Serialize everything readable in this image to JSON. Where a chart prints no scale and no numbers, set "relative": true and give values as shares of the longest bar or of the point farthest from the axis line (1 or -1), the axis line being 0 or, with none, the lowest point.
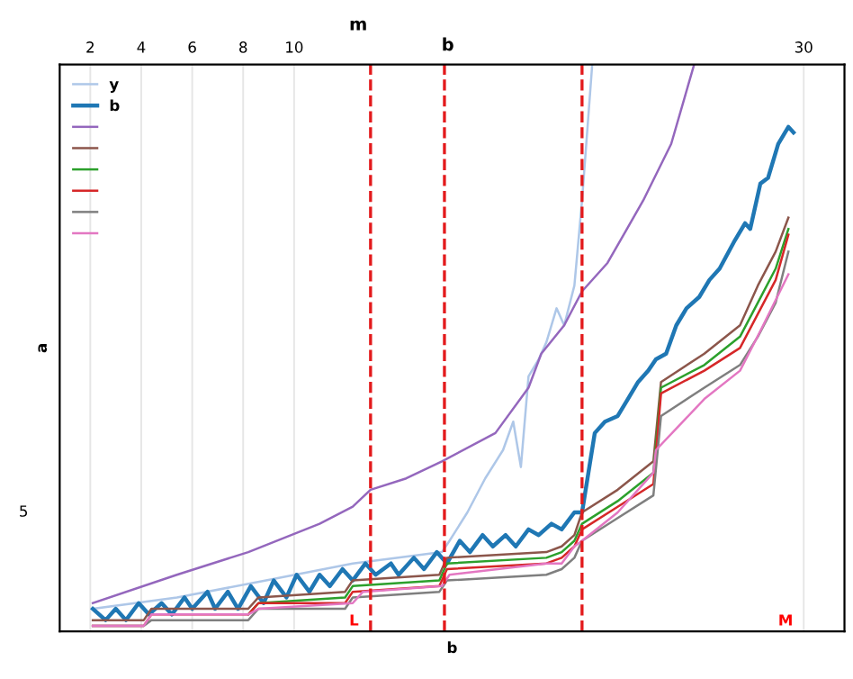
{
  "chart_data": {
    "type": "line",
    "title": "m",
    "subtitle": "b",
    "xlabel": "b",
    "ylabel": "a",
    "relative": true,
    "xlim": [
      0.8,
      31.6
    ],
    "xticks": [
      2,
      4,
      6,
      8,
      10,
      30
    ],
    "grid": "x",
    "legend": "top left",
    "marker": "none",
    "line_style": "solid",
    "ref_lines": [
      {
        "axis": "x",
        "value": 13.0,
        "color": "#e31a1c",
        "line_style": "dashed"
      },
      {
        "axis": "x",
        "value": 15.9,
        "color": "#e31a1c",
        "line_style": "dashed"
      },
      {
        "axis": "x",
        "value": 21.3,
        "color": "#e31a1c",
        "line_style": "dashed"
      }
    ],
    "annotations": [
      "5",
      "L",
      "M"
    ],
    "series": [
      {
        "name": "y",
        "color": "#aec7e8",
        "x": [
          2.1,
          5.4,
          8.9,
          12.3,
          15.8,
          16.1,
          16.8,
          17.5,
          18.2,
          18.6,
          18.9,
          19.2,
          19.6,
          19.9,
          20.3,
          20.6,
          21.0,
          21.3,
          21.7
        ],
        "values": [
          0.04,
          0.06,
          0.09,
          0.12,
          0.14,
          0.16,
          0.21,
          0.27,
          0.32,
          0.37,
          0.29,
          0.45,
          0.48,
          0.51,
          0.57,
          0.54,
          0.61,
          0.76,
          1.0
        ]
      },
      {
        "name": "b",
        "color": "#1f77b4",
        "x": [
          2.1,
          2.6,
          3.0,
          3.4,
          3.9,
          4.3,
          4.8,
          5.2,
          5.7,
          6.0,
          6.6,
          6.9,
          7.4,
          7.8,
          8.3,
          8.8,
          9.2,
          9.7,
          10.1,
          10.6,
          11.0,
          11.4,
          11.9,
          12.3,
          12.8,
          13.2,
          13.8,
          14.1,
          14.7,
          15.1,
          15.6,
          16.0,
          16.5,
          16.9,
          17.4,
          17.8,
          18.3,
          18.7,
          19.2,
          19.6,
          20.1,
          20.5,
          21.0,
          21.3,
          21.8,
          22.2,
          22.7,
          23.1,
          23.5,
          23.9,
          24.2,
          24.6,
          25.0,
          25.4,
          25.9,
          26.3,
          26.7,
          27.3,
          27.7,
          27.9,
          28.3,
          28.6,
          29.0,
          29.4,
          29.6
        ],
        "values": [
          0.04,
          0.02,
          0.04,
          0.02,
          0.05,
          0.03,
          0.05,
          0.03,
          0.06,
          0.04,
          0.07,
          0.04,
          0.07,
          0.04,
          0.08,
          0.05,
          0.09,
          0.06,
          0.1,
          0.07,
          0.1,
          0.08,
          0.11,
          0.09,
          0.12,
          0.1,
          0.12,
          0.1,
          0.13,
          0.11,
          0.14,
          0.12,
          0.16,
          0.14,
          0.17,
          0.15,
          0.17,
          0.15,
          0.18,
          0.17,
          0.19,
          0.18,
          0.21,
          0.21,
          0.35,
          0.37,
          0.38,
          0.41,
          0.44,
          0.46,
          0.48,
          0.49,
          0.54,
          0.57,
          0.59,
          0.62,
          0.64,
          0.69,
          0.72,
          0.71,
          0.79,
          0.8,
          0.86,
          0.89,
          0.88
        ]
      },
      {
        "color": "#9467bd",
        "x": [
          2.1,
          5.4,
          8.2,
          11.0,
          12.3,
          13.0,
          14.4,
          15.8,
          17.9,
          19.2,
          19.7,
          20.6,
          21.3,
          22.3,
          23.7,
          24.8,
          25.7
        ],
        "values": [
          0.05,
          0.1,
          0.14,
          0.19,
          0.22,
          0.25,
          0.27,
          0.3,
          0.35,
          0.43,
          0.49,
          0.54,
          0.6,
          0.65,
          0.76,
          0.86,
          1.0
        ]
      },
      {
        "color": "#8c564b",
        "x": [
          2.1,
          4.1,
          4.4,
          8.2,
          8.6,
          12.0,
          12.3,
          15.7,
          16.0,
          19.9,
          20.5,
          21.0,
          21.3,
          22.7,
          24.1,
          24.4,
          26.1,
          27.5,
          28.2,
          28.9,
          29.4
        ],
        "values": [
          0.02,
          0.02,
          0.04,
          0.04,
          0.06,
          0.07,
          0.09,
          0.1,
          0.13,
          0.14,
          0.15,
          0.17,
          0.21,
          0.25,
          0.3,
          0.44,
          0.49,
          0.54,
          0.61,
          0.67,
          0.73
        ]
      },
      {
        "color": "#2ca02c",
        "x": [
          8.2,
          8.6,
          12.0,
          12.3,
          15.7,
          16.0,
          19.9,
          20.5,
          21.0,
          21.3,
          22.7,
          24.1,
          24.4,
          26.1,
          27.5,
          28.2,
          28.9,
          29.4
        ],
        "values": [
          0.03,
          0.05,
          0.06,
          0.08,
          0.09,
          0.12,
          0.13,
          0.14,
          0.16,
          0.19,
          0.23,
          0.28,
          0.43,
          0.47,
          0.52,
          0.58,
          0.64,
          0.71
        ]
      },
      {
        "color": "#d62728",
        "x": [
          2.1,
          4.1,
          4.4,
          8.2,
          8.6,
          12.0,
          12.3,
          15.7,
          16.0,
          19.9,
          20.5,
          21.0,
          21.3,
          22.7,
          24.1,
          24.4,
          26.1,
          27.5,
          28.2,
          28.9,
          29.4
        ],
        "values": [
          0.01,
          0.01,
          0.03,
          0.03,
          0.05,
          0.05,
          0.07,
          0.08,
          0.11,
          0.12,
          0.13,
          0.15,
          0.18,
          0.22,
          0.26,
          0.42,
          0.46,
          0.5,
          0.56,
          0.62,
          0.7
        ]
      },
      {
        "color": "#7f7f7f",
        "x": [
          2.1,
          4.1,
          4.4,
          8.2,
          8.6,
          12.0,
          12.3,
          15.7,
          16.0,
          19.9,
          20.5,
          21.0,
          21.3,
          22.7,
          24.1,
          24.4,
          26.1,
          27.5,
          28.2,
          28.9,
          29.4
        ],
        "values": [
          0.01,
          0.01,
          0.02,
          0.02,
          0.04,
          0.04,
          0.06,
          0.07,
          0.09,
          0.1,
          0.11,
          0.13,
          0.16,
          0.2,
          0.24,
          0.38,
          0.43,
          0.47,
          0.52,
          0.58,
          0.67
        ]
      },
      {
        "color": "#e377c2",
        "x": [
          2.1,
          4.1,
          4.4,
          8.2,
          8.6,
          12.3,
          12.7,
          15.8,
          16.1,
          19.9,
          20.5,
          21.0,
          21.3,
          22.7,
          24.1,
          24.2,
          26.1,
          27.5,
          28.3,
          29.4
        ],
        "values": [
          0.01,
          0.01,
          0.03,
          0.03,
          0.04,
          0.05,
          0.07,
          0.08,
          0.1,
          0.12,
          0.12,
          0.15,
          0.16,
          0.21,
          0.28,
          0.32,
          0.41,
          0.46,
          0.53,
          0.63
        ]
      }
    ]
  }
}
